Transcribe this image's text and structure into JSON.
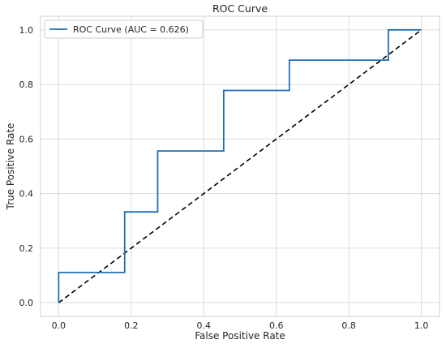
{
  "chart_data": {
    "type": "line",
    "title": "ROC Curve",
    "xlabel": "False Positive Rate",
    "ylabel": "True Positive Rate",
    "xlim": [
      -0.05,
      1.05
    ],
    "ylim": [
      -0.05,
      1.05
    ],
    "xticks": [
      "0.0",
      "0.2",
      "0.4",
      "0.6",
      "0.8",
      "1.0"
    ],
    "yticks": [
      "0.0",
      "0.2",
      "0.4",
      "0.6",
      "0.8",
      "1.0"
    ],
    "grid": true,
    "legend_position": "top-left",
    "series": [
      {
        "name": "ROC Curve (AUC = 0.626)",
        "color": "#1f6fb4",
        "style": "solid",
        "x": [
          0.0,
          0.0,
          0.182,
          0.182,
          0.273,
          0.273,
          0.455,
          0.455,
          0.636,
          0.636,
          0.909,
          0.909,
          1.0
        ],
        "y": [
          0.0,
          0.111,
          0.111,
          0.333,
          0.333,
          0.556,
          0.556,
          0.778,
          0.778,
          0.889,
          0.889,
          1.0,
          1.0
        ]
      },
      {
        "color": "#000000",
        "style": "dashed",
        "x": [
          0.0,
          1.0
        ],
        "y": [
          0.0,
          1.0
        ]
      }
    ]
  }
}
